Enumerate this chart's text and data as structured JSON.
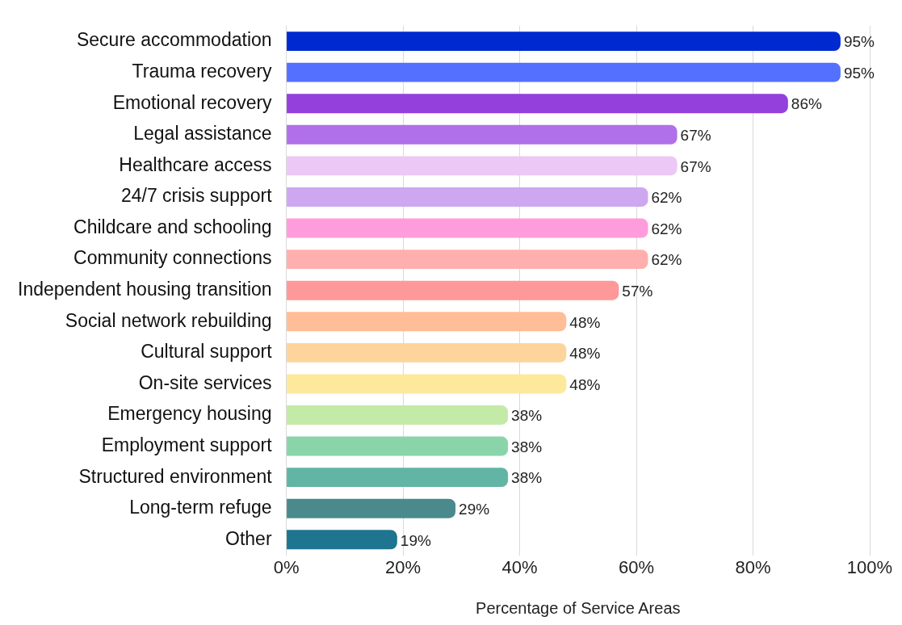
{
  "chart_data": {
    "type": "bar",
    "orientation": "horizontal",
    "xlabel": "Percentage of Service Areas",
    "categories": [
      "Secure accommodation",
      "Trauma recovery",
      "Emotional recovery",
      "Legal assistance",
      "Healthcare access",
      "24/7 crisis support",
      "Childcare and schooling",
      "Community connections",
      "Independent housing transition",
      "Social network rebuilding",
      "Cultural support",
      "On-site services",
      "Emergency housing",
      "Employment support",
      "Structured environment",
      "Long-term refuge",
      "Other"
    ],
    "values": [
      95,
      95,
      86,
      67,
      67,
      62,
      62,
      62,
      57,
      48,
      48,
      48,
      38,
      38,
      38,
      29,
      19
    ],
    "colors": [
      "#002ad0",
      "#5470ff",
      "#9340dc",
      "#b070e8",
      "#ecc8f5",
      "#cda8f0",
      "#ff9cdc",
      "#ffb0ae",
      "#ff9898",
      "#ffbe98",
      "#fdd49c",
      "#fee89c",
      "#c4eaa8",
      "#8ad4aa",
      "#62b4a4",
      "#4a8a8c",
      "#1f7490"
    ],
    "value_labels": [
      "95%",
      "95%",
      "86%",
      "67%",
      "67%",
      "62%",
      "62%",
      "62%",
      "57%",
      "48%",
      "48%",
      "48%",
      "38%",
      "38%",
      "38%",
      "29%",
      "19%"
    ],
    "xlim": [
      0,
      100
    ],
    "xticks": [
      {
        "value": 0,
        "label": "0%"
      },
      {
        "value": 20,
        "label": "20%"
      },
      {
        "value": 40,
        "label": "40%"
      },
      {
        "value": 60,
        "label": "60%"
      },
      {
        "value": 80,
        "label": "80%"
      },
      {
        "value": 100,
        "label": "100%"
      }
    ],
    "grid": "x",
    "legend": false
  }
}
